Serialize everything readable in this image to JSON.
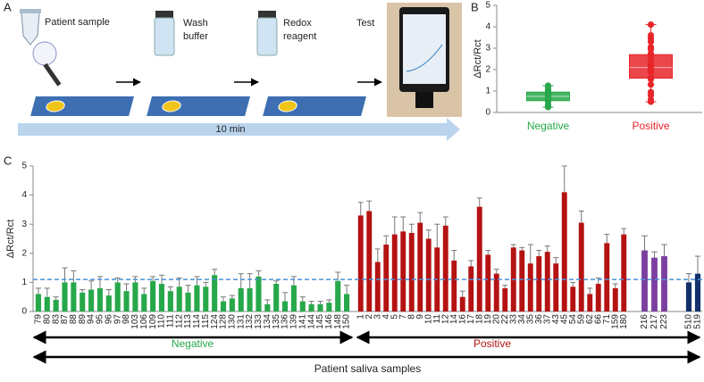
{
  "panel_labels": [
    "A",
    "B",
    "C"
  ],
  "illustration": {
    "steps": [
      [
        "Patient sample"
      ],
      [
        "Wash",
        "buffer"
      ],
      [
        "Redox",
        "reagent"
      ],
      [
        "Test"
      ]
    ],
    "timeline": "10 min"
  },
  "chart_data": [
    {
      "type": "box",
      "ylabel": "ΔRct/Rct",
      "ylim": [
        0,
        5
      ],
      "yticks": [
        0,
        1,
        2,
        3,
        4,
        5
      ],
      "boxes": [
        {
          "name": "Negative",
          "color": "#27a84a",
          "whisker_low": 0.25,
          "q1": 0.55,
          "median": 0.75,
          "q3": 0.95,
          "whisker_high": 1.25,
          "points": [
            0.25,
            0.35,
            0.5,
            0.6,
            0.65,
            0.7,
            0.75,
            0.8,
            0.85,
            0.9,
            0.95,
            1.0,
            1.05,
            1.2,
            1.25
          ]
        },
        {
          "name": "Positive",
          "color": "#e8262a",
          "whisker_low": 0.5,
          "q1": 1.6,
          "median": 2.1,
          "q3": 2.7,
          "whisker_high": 4.1,
          "points": [
            0.5,
            0.6,
            0.8,
            0.95,
            1.3,
            1.55,
            1.65,
            1.9,
            1.95,
            2.05,
            2.1,
            2.2,
            2.3,
            2.5,
            2.65,
            2.7,
            2.75,
            2.95,
            3.05,
            3.3,
            3.45,
            3.6,
            4.1
          ]
        }
      ]
    },
    {
      "type": "bar",
      "ylabel": "ΔRct/Rct",
      "xlabel": "Patient saliva samples",
      "ylim": [
        0,
        5
      ],
      "yticks": [
        0,
        1,
        2,
        3,
        4,
        5
      ],
      "threshold": 1.1,
      "threshold_color": "#4a90d9",
      "groups": [
        {
          "name": "Negative",
          "color": "#27a84a",
          "categories": [
            "79",
            "80",
            "83",
            "87",
            "88",
            "89",
            "94",
            "95",
            "96",
            "97",
            "98",
            "103",
            "106",
            "109",
            "110",
            "111",
            "112",
            "113",
            "114",
            "115",
            "124",
            "128",
            "130",
            "131",
            "132",
            "133",
            "134",
            "135",
            "136",
            "139",
            "141",
            "144",
            "145",
            "146",
            "148",
            "150"
          ],
          "values": [
            0.6,
            0.5,
            0.4,
            1.0,
            1.0,
            0.65,
            0.75,
            0.8,
            0.55,
            1.0,
            0.7,
            1.0,
            0.6,
            1.05,
            0.95,
            0.7,
            0.85,
            0.65,
            0.9,
            0.85,
            1.25,
            0.35,
            0.45,
            0.8,
            0.8,
            1.2,
            0.25,
            0.95,
            0.35,
            0.9,
            0.35,
            0.25,
            0.25,
            0.3,
            1.05,
            0.6
          ],
          "errors": [
            0.2,
            0.3,
            0.1,
            0.5,
            0.4,
            0.1,
            0.3,
            0.4,
            0.2,
            0.15,
            0.25,
            0.2,
            0.2,
            0.15,
            0.3,
            0.15,
            0.3,
            0.25,
            0.3,
            0.15,
            0.2,
            0.15,
            0.1,
            0.5,
            0.5,
            0.2,
            0.15,
            0.1,
            0.3,
            0.3,
            0.15,
            0.1,
            0.1,
            0.1,
            0.3,
            0.3
          ]
        },
        {
          "name": "Positive",
          "color": "#b51212",
          "categories": [
            "1",
            "2",
            "3",
            "4",
            "5",
            "7",
            "8",
            "9",
            "10",
            "11",
            "12",
            "14",
            "16",
            "17",
            "18",
            "19",
            "20",
            "22",
            "33",
            "34",
            "35",
            "36",
            "37",
            "43",
            "45",
            "54",
            "59",
            "62",
            "66",
            "71",
            "159",
            "180"
          ],
          "values": [
            3.3,
            3.45,
            1.7,
            2.3,
            2.65,
            2.75,
            2.7,
            3.05,
            2.5,
            2.2,
            2.95,
            1.75,
            0.5,
            1.55,
            3.6,
            1.95,
            1.3,
            0.8,
            2.2,
            2.1,
            1.65,
            1.9,
            2.05,
            1.65,
            4.1,
            0.85,
            3.05,
            0.6,
            0.95,
            2.35,
            0.8,
            2.65
          ],
          "errors": [
            0.45,
            0.35,
            0.45,
            0.3,
            0.6,
            0.5,
            0.3,
            0.35,
            0.3,
            0.8,
            0.3,
            0.35,
            0.2,
            0.2,
            0.3,
            0.15,
            0.15,
            0.1,
            0.1,
            0.1,
            0.65,
            0.2,
            0.2,
            0.2,
            0.9,
            0.15,
            0.4,
            0.2,
            0.2,
            0.3,
            0.15,
            0.2
          ]
        },
        {
          "color": "#7b3fa0",
          "categories": [
            "216",
            "217",
            "223"
          ],
          "values": [
            2.1,
            1.85,
            1.9
          ],
          "errors": [
            0.5,
            0.2,
            0.4
          ]
        },
        {
          "color": "#13306b",
          "categories": [
            "510",
            "519"
          ],
          "values": [
            1.0,
            1.3
          ],
          "errors": [
            0.3,
            0.6
          ]
        }
      ]
    }
  ]
}
